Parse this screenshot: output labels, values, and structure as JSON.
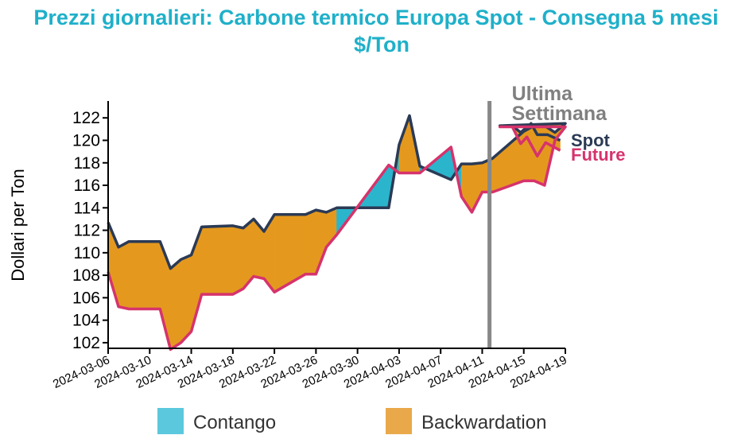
{
  "chart_data": {
    "type": "area",
    "title": "Prezzi giornalieri: Carbone termico Europa Spot - Consegna 5 mesi",
    "subtitle": "$/Ton",
    "ylabel": "Dollari per Ton",
    "xlabel": "",
    "ylim": [
      101.5,
      123.5
    ],
    "y_ticks": [
      102,
      104,
      106,
      108,
      110,
      112,
      114,
      116,
      118,
      120,
      122
    ],
    "x_ticks": [
      "2024-03-06",
      "2024-03-10",
      "2024-03-14",
      "2024-03-18",
      "2024-03-22",
      "2024-03-26",
      "2024-03-30",
      "2024-04-03",
      "2024-04-07",
      "2024-04-11",
      "2024-04-15",
      "2024-04-19"
    ],
    "x": [
      "2024-03-06",
      "2024-03-07",
      "2024-03-08",
      "2024-03-11",
      "2024-03-12",
      "2024-03-13",
      "2024-03-14",
      "2024-03-15",
      "2024-03-18",
      "2024-03-19",
      "2024-03-20",
      "2024-03-21",
      "2024-03-22",
      "2024-03-25",
      "2024-03-26",
      "2024-03-27",
      "2024-03-28",
      "2024-04-02",
      "2024-04-03",
      "2024-04-04",
      "2024-04-05",
      "2024-04-08",
      "2024-04-09",
      "2024-04-10",
      "2024-04-11",
      "2024-04-12",
      "2024-04-15",
      "2024-04-16",
      "2024-04-17",
      "2024-04-18",
      "2024-04-19"
    ],
    "series": [
      {
        "name": "Spot",
        "color": "#2B3A55",
        "values": [
          112.7,
          110.5,
          111.0,
          111.0,
          108.6,
          109.4,
          109.8,
          112.3,
          112.4,
          112.2,
          113.0,
          111.9,
          113.4,
          113.4,
          113.8,
          113.6,
          114.0,
          114.0,
          119.6,
          122.2,
          117.7,
          116.5,
          117.9,
          117.9,
          118.0,
          118.4,
          120.8,
          121.3,
          121.3,
          120.7,
          121.5
        ]
      },
      {
        "name": "Future",
        "color": "#D6336C",
        "values": [
          108.3,
          105.2,
          105.0,
          105.0,
          101.4,
          102.0,
          103.0,
          106.3,
          106.3,
          106.8,
          107.9,
          107.7,
          106.5,
          108.1,
          108.1,
          110.5,
          111.6,
          117.8,
          117.1,
          117.1,
          117.1,
          119.4,
          115.0,
          113.6,
          115.4,
          115.4,
          116.4,
          116.4,
          116.0,
          120.0,
          121.2
        ]
      }
    ],
    "extra": {
      "spot_tail": [
        [
          0.0,
          121.3
        ],
        [
          1.2,
          121.3
        ],
        [
          2.0,
          120.7
        ],
        [
          3.0,
          121.5
        ],
        [
          3.6,
          120.5
        ],
        [
          4.6,
          120.5
        ],
        [
          5.8,
          120.0
        ]
      ],
      "future_tail": [
        [
          0.0,
          121.2
        ],
        [
          1.2,
          121.2
        ],
        [
          2.0,
          119.7
        ],
        [
          2.6,
          120.3
        ],
        [
          3.6,
          118.6
        ],
        [
          4.4,
          119.8
        ],
        [
          5.8,
          119.1
        ]
      ]
    },
    "fill_colors": {
      "contango": "#2BB5CC",
      "backwardation": "#E4991E"
    },
    "vertical_marker": {
      "label_line1": "Ultima",
      "label_line2": "Settimana",
      "color": "#888888"
    },
    "series_labels": {
      "spot": "Spot",
      "future": "Future"
    },
    "legend": [
      {
        "label": "Contango",
        "color": "#5BC8DD"
      },
      {
        "label": "Backwardation",
        "color": "#E9A94B"
      }
    ],
    "legend_position": "bottom",
    "grid": false
  }
}
